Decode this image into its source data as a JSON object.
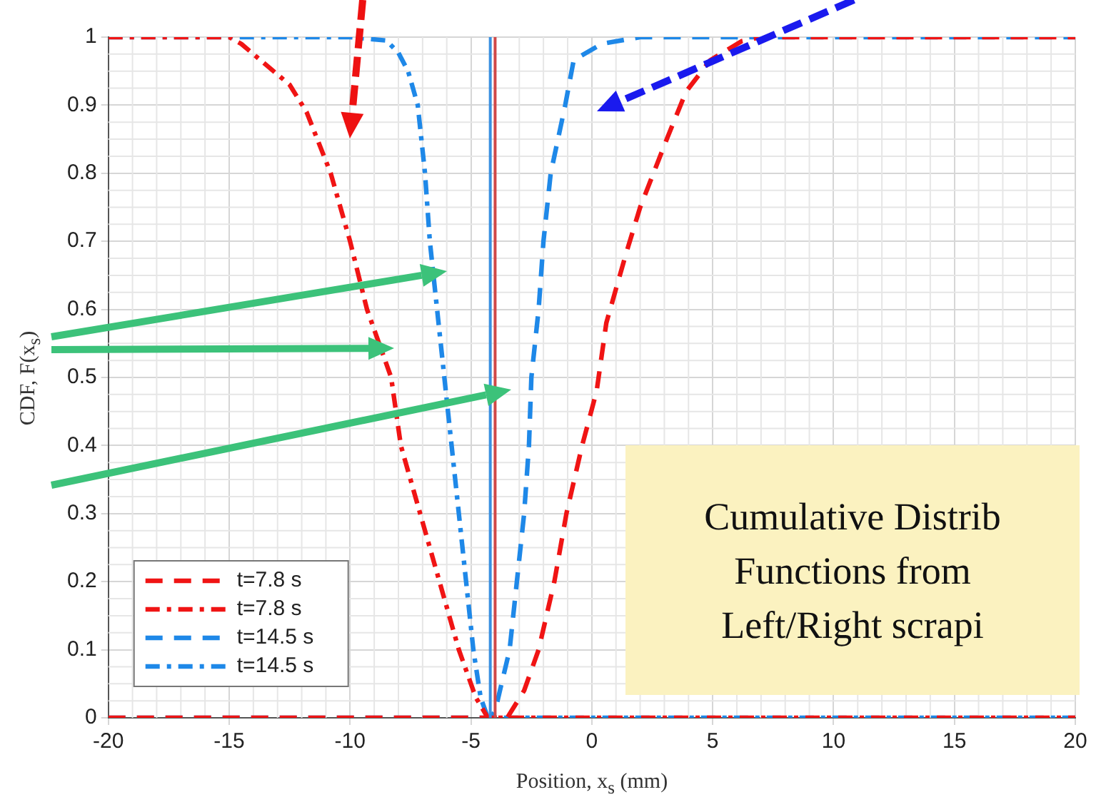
{
  "chart_data": {
    "type": "line",
    "xlabel": "Position, x$_{s}$ (mm)",
    "ylabel": "CDF, F(x$_{s}$)",
    "xlim": [
      -20,
      20
    ],
    "xticks": [
      -20,
      -15,
      -10,
      -5,
      0,
      5,
      10,
      15,
      20
    ],
    "ylim": [
      0,
      1
    ],
    "yticks": [
      0,
      0.1,
      0.2,
      0.3,
      0.4,
      0.5,
      0.6,
      0.7,
      0.8,
      0.9,
      1
    ],
    "grid": true,
    "legend": "bottom left",
    "marker": "none",
    "series": [
      {
        "name": "t=7.8 s",
        "color": "#f01414",
        "line_style": "dashed",
        "x": [
          -20,
          -3.5,
          -2.8,
          -2.2,
          -1.55,
          -1.05,
          -0.4,
          0.2,
          0.6,
          1.4,
          2,
          3.1,
          3.9,
          4.9,
          6.2,
          7,
          20
        ],
        "values": [
          0,
          0,
          0.04,
          0.1,
          0.2,
          0.3,
          0.4,
          0.48,
          0.58,
          0.68,
          0.75,
          0.85,
          0.92,
          0.966,
          0.994,
          1,
          1
        ]
      },
      {
        "name": "t=7.8 s",
        "color": "#f01414",
        "line_style": "dashdot",
        "x": [
          -20,
          -15,
          -14.5,
          -13.5,
          -12.5,
          -11.8,
          -10.8,
          -10,
          -9.3,
          -8.3,
          -7.9,
          -7.1,
          -6.3,
          -5.5,
          -4.8,
          -4.3,
          20
        ],
        "values": [
          1,
          1,
          0.99,
          0.96,
          0.93,
          0.89,
          0.8,
          0.7,
          0.6,
          0.5,
          0.4,
          0.3,
          0.2,
          0.1,
          0.03,
          0,
          0
        ]
      },
      {
        "name": "t=14.5 s",
        "color": "#1e88e8",
        "line_style": "dashed",
        "x": [
          -20,
          -4.2,
          -4,
          -3.4,
          -3.1,
          -2.8,
          -2.6,
          -2.5,
          -2.2,
          -2,
          -1.7,
          -1.1,
          -0.75,
          0.4,
          2,
          20
        ],
        "values": [
          0,
          0,
          0.01,
          0.1,
          0.2,
          0.3,
          0.4,
          0.5,
          0.6,
          0.7,
          0.8,
          0.9,
          0.966,
          0.99,
          1,
          1
        ]
      },
      {
        "name": "t=14.5 s",
        "color": "#1e88e8",
        "line_style": "dashdot",
        "x": [
          -20,
          -10,
          -8.5,
          -8,
          -7.6,
          -7.2,
          -6.9,
          -6.7,
          -6.4,
          -6.1,
          -5.8,
          -5.5,
          -5.2,
          -4.9,
          -4.6,
          -4.3,
          20
        ],
        "values": [
          1,
          1,
          0.995,
          0.977,
          0.95,
          0.9,
          0.8,
          0.7,
          0.6,
          0.5,
          0.4,
          0.3,
          0.2,
          0.1,
          0.03,
          0,
          0
        ]
      }
    ],
    "ref_lines": [
      {
        "axis": "x",
        "value": -4.2,
        "color": "#3a8fe0"
      },
      {
        "axis": "x",
        "value": -4,
        "color": "#d04848"
      }
    ],
    "annotations": [
      "Cumulative Distrib",
      "Functions from",
      "Left/Right scrapi"
    ]
  }
}
